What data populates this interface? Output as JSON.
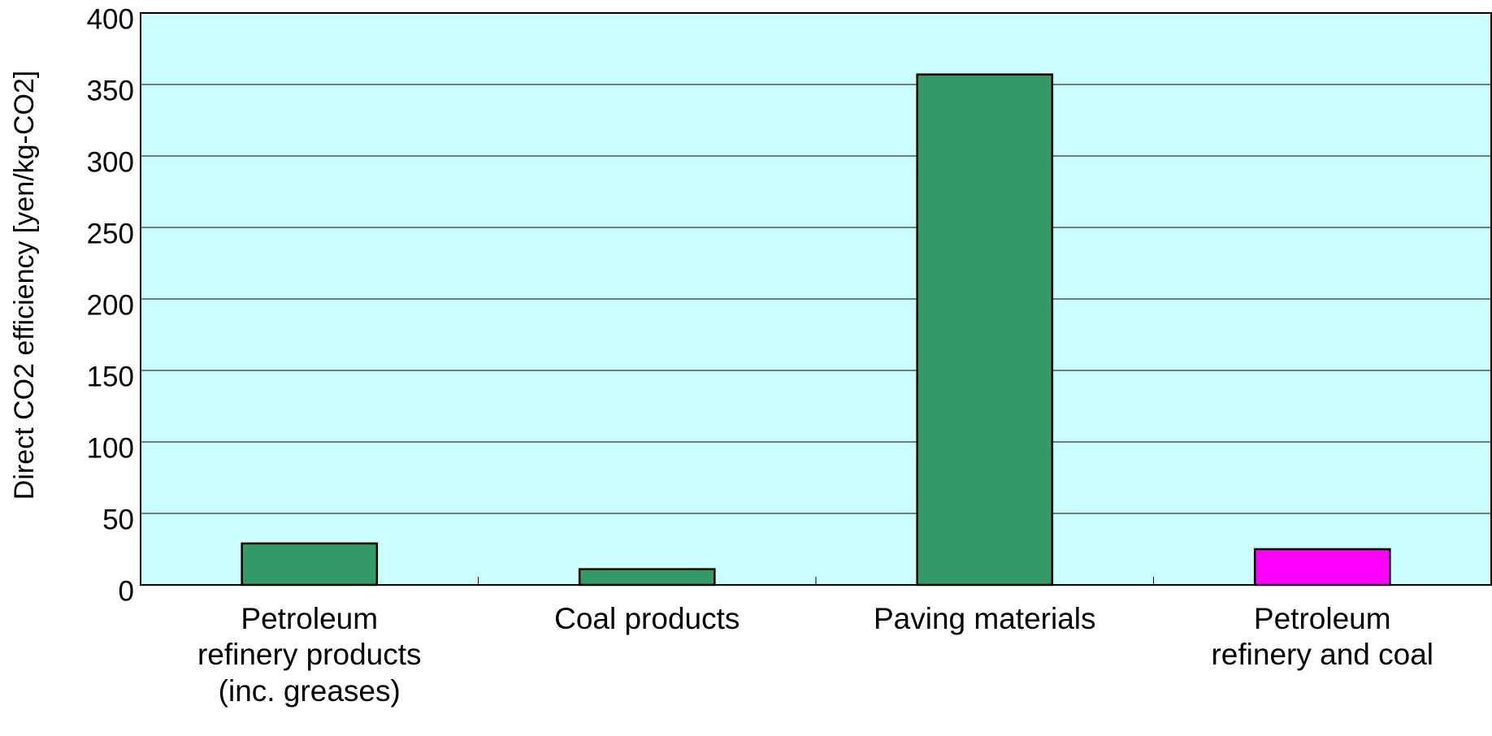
{
  "chart_data": {
    "type": "bar",
    "y_label": "Direct CO2 efficiency [yen/kg-CO2]",
    "categories": [
      "Petroleum\nrefinery products\n(inc. greases)",
      "Coal products",
      "Paving materials",
      "Petroleum\nrefinery and coal"
    ],
    "values": [
      29,
      11,
      357,
      25
    ],
    "colors": [
      "#339966",
      "#339966",
      "#339966",
      "#ff00ff"
    ],
    "ylim": [
      0,
      400
    ],
    "yticks": [
      0,
      50,
      100,
      150,
      200,
      250,
      300,
      350,
      400
    ],
    "grid": true
  }
}
